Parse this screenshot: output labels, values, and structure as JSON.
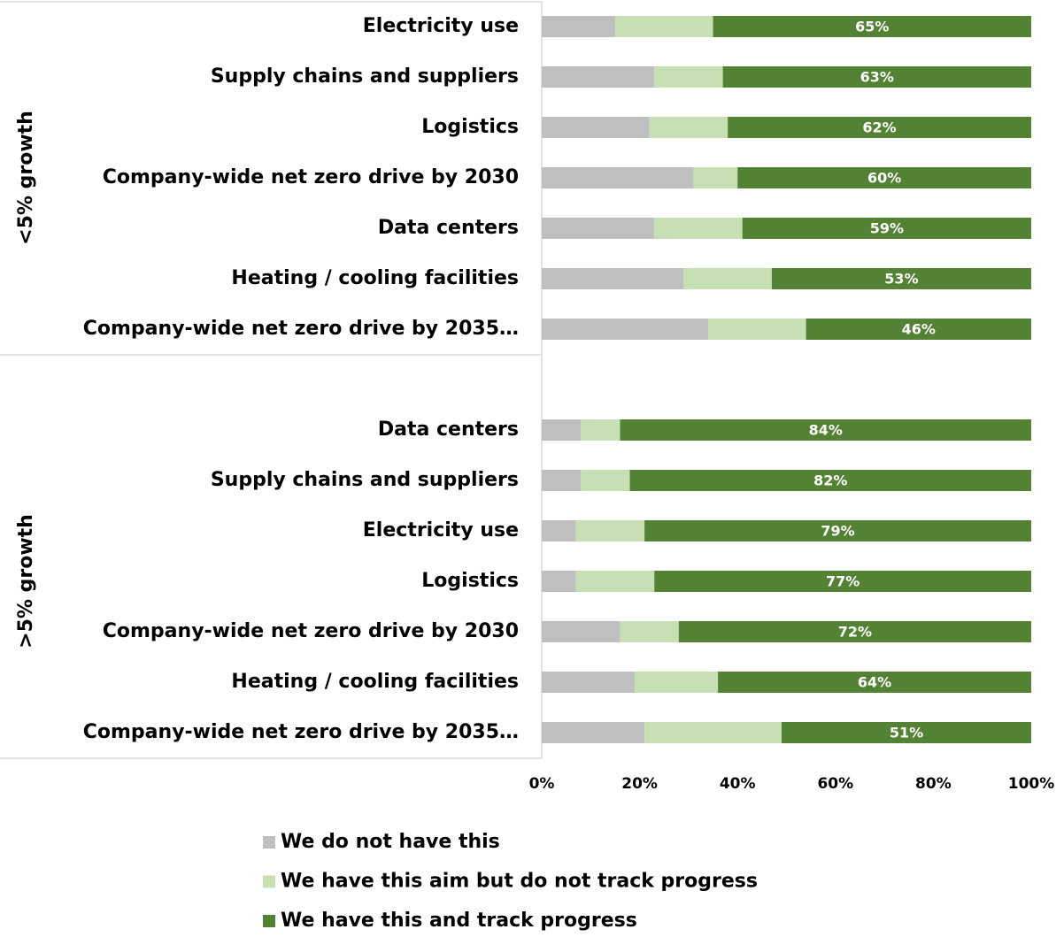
{
  "chart_data": {
    "type": "stacked_bar_horizontal",
    "groups": [
      {
        "name": "<5% growth",
        "categories": [
          "Electricity use",
          "Supply chains and suppliers",
          "Logistics",
          "Company-wide net zero drive by 2030",
          "Data centers",
          "Heating / cooling facilities",
          "Company-wide net zero drive by 2035…"
        ]
      },
      {
        "name": ">5% growth",
        "categories": [
          "Data centers",
          "Supply chains and suppliers",
          "Electricity use",
          "Logistics",
          "Company-wide net zero drive by 2030",
          "Heating / cooling facilities",
          "Company-wide net zero drive by 2035…"
        ]
      }
    ],
    "series": [
      {
        "name": "We do not have this",
        "color": "#bfbfbf",
        "values": [
          [
            15,
            23,
            22,
            31,
            23,
            29,
            34
          ],
          [
            8,
            8,
            7,
            7,
            16,
            19,
            21
          ]
        ]
      },
      {
        "name": "We have this aim but do not track progress",
        "color": "#c6e0b4",
        "values": [
          [
            20,
            14,
            16,
            9,
            18,
            18,
            20
          ],
          [
            8,
            10,
            14,
            16,
            12,
            17,
            28
          ]
        ]
      },
      {
        "name": "We have this and track progress",
        "color": "#548235",
        "values": [
          [
            65,
            63,
            62,
            60,
            59,
            53,
            46
          ],
          [
            84,
            82,
            79,
            77,
            72,
            64,
            51
          ]
        ],
        "value_labels": [
          [
            "65%",
            "63%",
            "62%",
            "60%",
            "59%",
            "53%",
            "46%"
          ],
          [
            "84%",
            "82%",
            "79%",
            "77%",
            "72%",
            "64%",
            "51%"
          ]
        ]
      }
    ],
    "xlim": [
      0,
      100
    ],
    "xticks": [
      {
        "value": 0,
        "label": "0%"
      },
      {
        "value": 20,
        "label": "20%"
      },
      {
        "value": 40,
        "label": "40%"
      },
      {
        "value": 60,
        "label": "60%"
      },
      {
        "value": 80,
        "label": "80%"
      },
      {
        "value": 100,
        "label": "100%"
      }
    ],
    "legend": "bottom"
  }
}
